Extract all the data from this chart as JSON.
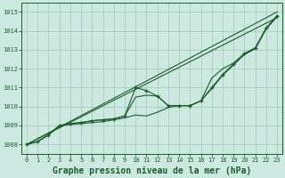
{
  "background_color": "#cce8e0",
  "grid_color": "#aaccbb",
  "line_color": "#1a5e2a",
  "xlabel": "Graphe pression niveau de la mer (hPa)",
  "xlabel_fontsize": 7,
  "ylim": [
    1007.5,
    1015.5
  ],
  "xlim": [
    -0.5,
    23.5
  ],
  "yticks": [
    1008,
    1009,
    1010,
    1011,
    1012,
    1013,
    1014,
    1015
  ],
  "xticks": [
    0,
    1,
    2,
    3,
    4,
    5,
    6,
    7,
    8,
    9,
    10,
    11,
    12,
    13,
    14,
    15,
    16,
    17,
    18,
    19,
    20,
    21,
    22,
    23
  ],
  "straight_lines": [
    [
      [
        0,
        23
      ],
      [
        1008.0,
        1014.7
      ]
    ],
    [
      [
        0,
        23
      ],
      [
        1008.0,
        1015.0
      ]
    ]
  ],
  "curved_series": [
    {
      "x": [
        0,
        1,
        2,
        3,
        4,
        5,
        6,
        7,
        8,
        9,
        10,
        11,
        12,
        13,
        14,
        15,
        16,
        17,
        18,
        19,
        20,
        21,
        22,
        23
      ],
      "y": [
        1008.0,
        1008.15,
        1008.5,
        1009.0,
        1009.1,
        1009.15,
        1009.25,
        1009.3,
        1009.35,
        1009.5,
        1011.0,
        1010.85,
        1010.55,
        1010.05,
        1010.05,
        1010.05,
        1010.3,
        1011.0,
        1011.7,
        1012.25,
        1012.8,
        1013.1,
        1014.15,
        1014.8
      ],
      "markers": true
    },
    {
      "x": [
        0,
        1,
        2,
        3,
        4,
        5,
        6,
        7,
        8,
        9,
        10,
        11,
        12,
        13,
        14,
        15,
        16,
        17,
        18,
        19,
        20,
        21,
        22,
        23
      ],
      "y": [
        1008.0,
        1008.15,
        1008.5,
        1009.0,
        1009.1,
        1009.15,
        1009.25,
        1009.3,
        1009.35,
        1009.5,
        1010.5,
        1010.6,
        1010.55,
        1010.05,
        1010.05,
        1010.05,
        1010.3,
        1011.5,
        1012.0,
        1012.3,
        1012.8,
        1013.1,
        1014.15,
        1014.8
      ],
      "markers": false
    },
    {
      "x": [
        0,
        1,
        2,
        3,
        4,
        5,
        6,
        7,
        8,
        9,
        10,
        11,
        12,
        13,
        14,
        15,
        16,
        17,
        18,
        19,
        20,
        21,
        22,
        23
      ],
      "y": [
        1008.0,
        1008.15,
        1008.5,
        1009.0,
        1009.05,
        1009.1,
        1009.15,
        1009.2,
        1009.3,
        1009.4,
        1009.55,
        1009.5,
        1009.7,
        1009.95,
        1010.05,
        1010.05,
        1010.3,
        1010.95,
        1011.65,
        1012.2,
        1012.75,
        1013.05,
        1014.1,
        1014.75
      ],
      "markers": false
    }
  ]
}
